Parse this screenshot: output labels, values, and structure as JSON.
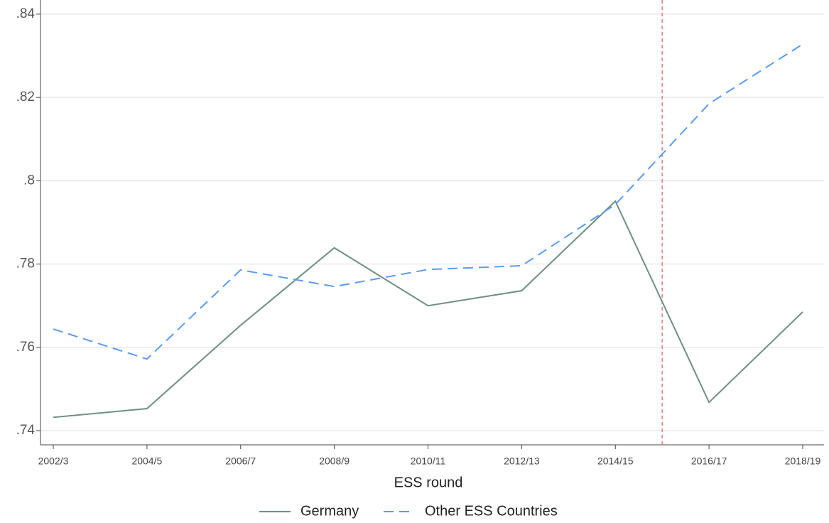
{
  "chart_data": {
    "type": "line",
    "x_label": "ESS round",
    "categories": [
      "2002/3",
      "2004/5",
      "2006/7",
      "2008/9",
      "2010/11",
      "2012/13",
      "2014/15",
      "2016/17",
      "2018/19"
    ],
    "series": [
      {
        "name": "Germany",
        "color": "#6e8f84",
        "dash": false,
        "values": [
          0.7432,
          0.7453,
          0.7653,
          0.7839,
          0.77,
          0.7736,
          0.7951,
          0.7468,
          0.7685
        ]
      },
      {
        "name": "Other ESS Countries",
        "color": "#5b9bf0",
        "dash": true,
        "values": [
          0.7644,
          0.7572,
          0.7786,
          0.7746,
          0.7787,
          0.7796,
          0.7943,
          0.8185,
          0.8328
        ]
      }
    ],
    "reference_line": {
      "x": 6.5,
      "color": "#e87b7b"
    },
    "ylim": [
      0.7366,
      0.8434
    ],
    "yticks": [
      {
        "value": 0.74,
        "label": ".74"
      },
      {
        "value": 0.76,
        "label": ".76"
      },
      {
        "value": 0.78,
        "label": ".78"
      },
      {
        "value": 0.8,
        "label": ".8"
      },
      {
        "value": 0.82,
        "label": ".82"
      },
      {
        "value": 0.84,
        "label": ".84"
      }
    ],
    "grid": true,
    "legend": "bottom"
  }
}
